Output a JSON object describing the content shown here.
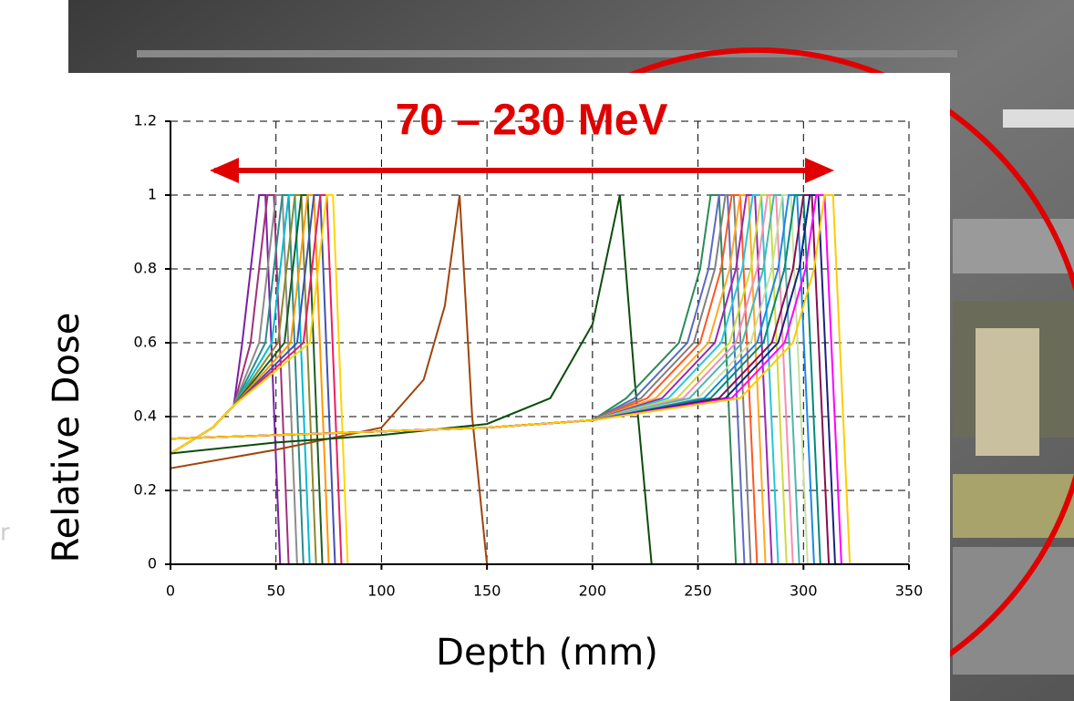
{
  "chart_data": {
    "type": "line",
    "annotation": "70 – 230 MeV",
    "background_fragment": "r",
    "xlabel": "Depth (mm)",
    "ylabel": "Relative Dose",
    "xlim": [
      0,
      350
    ],
    "ylim": [
      0,
      1.2
    ],
    "xticks": [
      0,
      50,
      100,
      150,
      200,
      250,
      300,
      350
    ],
    "yticks": [
      0,
      0.2,
      0.4,
      0.6,
      0.8,
      1,
      1.2
    ],
    "grid": true,
    "series": [
      {
        "color": "#7b1fa2",
        "x": [
          0,
          20,
          30,
          34,
          39,
          42,
          45,
          52
        ],
        "values": [
          0.3,
          0.37,
          0.43,
          0.6,
          0.85,
          1,
          1,
          0
        ]
      },
      {
        "color": "#a0307a",
        "x": [
          0,
          20,
          30,
          38,
          43,
          46,
          49,
          56
        ],
        "values": [
          0.3,
          0.37,
          0.43,
          0.6,
          0.85,
          1,
          1,
          0
        ]
      },
      {
        "color": "#8c8c8c",
        "x": [
          0,
          20,
          30,
          42,
          47,
          50,
          53,
          60
        ],
        "values": [
          0.3,
          0.37,
          0.43,
          0.6,
          0.85,
          1,
          1,
          0
        ]
      },
      {
        "color": "#2e8b8b",
        "x": [
          0,
          20,
          30,
          45,
          50,
          53,
          56,
          63
        ],
        "values": [
          0.3,
          0.37,
          0.43,
          0.6,
          0.85,
          1,
          1,
          0
        ]
      },
      {
        "color": "#00bcd4",
        "x": [
          0,
          20,
          30,
          48,
          53,
          56,
          59,
          66
        ],
        "values": [
          0.3,
          0.37,
          0.43,
          0.6,
          0.85,
          1,
          1,
          0
        ]
      },
      {
        "color": "#8a8a2a",
        "x": [
          0,
          20,
          30,
          51,
          56,
          59,
          62,
          69
        ],
        "values": [
          0.3,
          0.37,
          0.43,
          0.6,
          0.85,
          1,
          1,
          0
        ]
      },
      {
        "color": "#1b5e20",
        "x": [
          0,
          20,
          30,
          54,
          59,
          62,
          65,
          72
        ],
        "values": [
          0.3,
          0.37,
          0.43,
          0.6,
          0.85,
          1,
          1,
          0
        ]
      },
      {
        "color": "#ff9800",
        "x": [
          0,
          20,
          30,
          57,
          62,
          65,
          68,
          75
        ],
        "values": [
          0.3,
          0.37,
          0.43,
          0.6,
          0.85,
          1,
          1,
          0
        ]
      },
      {
        "color": "#3f51b5",
        "x": [
          0,
          20,
          30,
          60,
          65,
          68,
          71,
          78
        ],
        "values": [
          0.3,
          0.37,
          0.43,
          0.6,
          0.85,
          1,
          1,
          0
        ]
      },
      {
        "color": "#e91e63",
        "x": [
          0,
          20,
          30,
          63,
          68,
          71,
          74,
          81
        ],
        "values": [
          0.3,
          0.37,
          0.43,
          0.6,
          0.85,
          1,
          1,
          0
        ]
      },
      {
        "color": "#ffd600",
        "x": [
          0,
          20,
          30,
          66,
          71,
          74,
          77,
          84
        ],
        "values": [
          0.3,
          0.37,
          0.43,
          0.6,
          0.85,
          1,
          1,
          0
        ]
      },
      {
        "color": "#a0440a",
        "x": [
          0,
          50,
          100,
          120,
          130,
          137,
          143,
          150
        ],
        "values": [
          0.26,
          0.31,
          0.37,
          0.5,
          0.7,
          1,
          0.4,
          0
        ]
      },
      {
        "color": "#0b4d0b",
        "x": [
          0,
          50,
          100,
          150,
          180,
          200,
          213,
          220,
          228
        ],
        "values": [
          0.3,
          0.33,
          0.35,
          0.38,
          0.45,
          0.65,
          1,
          0.5,
          0
        ]
      },
      {
        "color": "#2a8a5a",
        "x": [
          0,
          100,
          150,
          200,
          216,
          241,
          251,
          256,
          260,
          268
        ],
        "values": [
          0.34,
          0.36,
          0.37,
          0.39,
          0.45,
          0.6,
          0.8,
          1,
          1,
          0
        ]
      },
      {
        "color": "#5c6bc0",
        "x": [
          0,
          100,
          150,
          200,
          220,
          245,
          255,
          260,
          264,
          272
        ],
        "values": [
          0.34,
          0.36,
          0.37,
          0.39,
          0.45,
          0.6,
          0.8,
          1,
          1,
          0
        ]
      },
      {
        "color": "#808080",
        "x": [
          0,
          100,
          150,
          200,
          223,
          248,
          258,
          263,
          267,
          275
        ],
        "values": [
          0.34,
          0.36,
          0.37,
          0.39,
          0.45,
          0.6,
          0.8,
          1,
          1,
          0
        ]
      },
      {
        "color": "#ff5722",
        "x": [
          0,
          100,
          150,
          200,
          226,
          251,
          261,
          266,
          270,
          278
        ],
        "values": [
          0.34,
          0.36,
          0.37,
          0.39,
          0.45,
          0.6,
          0.8,
          1,
          1,
          0
        ]
      },
      {
        "color": "#ffa726",
        "x": [
          0,
          100,
          150,
          200,
          230,
          255,
          265,
          270,
          274,
          282
        ],
        "values": [
          0.34,
          0.36,
          0.37,
          0.39,
          0.45,
          0.6,
          0.8,
          1,
          1,
          0
        ]
      },
      {
        "color": "#9c27b0",
        "x": [
          0,
          100,
          150,
          200,
          233,
          258,
          268,
          273,
          277,
          285
        ],
        "values": [
          0.34,
          0.36,
          0.37,
          0.39,
          0.45,
          0.6,
          0.8,
          1,
          1,
          0
        ]
      },
      {
        "color": "#26c6da",
        "x": [
          0,
          100,
          150,
          200,
          236,
          261,
          271,
          276,
          280,
          288
        ],
        "values": [
          0.34,
          0.36,
          0.37,
          0.39,
          0.45,
          0.6,
          0.8,
          1,
          1,
          0
        ]
      },
      {
        "color": "#cddc39",
        "x": [
          0,
          100,
          150,
          200,
          240,
          265,
          275,
          280,
          284,
          292
        ],
        "values": [
          0.34,
          0.36,
          0.37,
          0.39,
          0.45,
          0.6,
          0.8,
          1,
          1,
          0
        ]
      },
      {
        "color": "#f48fb1",
        "x": [
          0,
          100,
          150,
          200,
          243,
          268,
          278,
          283,
          287,
          295
        ],
        "values": [
          0.34,
          0.36,
          0.37,
          0.39,
          0.45,
          0.6,
          0.8,
          1,
          1,
          0
        ]
      },
      {
        "color": "#4db6ac",
        "x": [
          0,
          100,
          150,
          200,
          246,
          271,
          281,
          286,
          290,
          298
        ],
        "values": [
          0.34,
          0.36,
          0.37,
          0.39,
          0.45,
          0.6,
          0.8,
          1,
          1,
          0
        ]
      },
      {
        "color": "#c5e1a5",
        "x": [
          0,
          100,
          150,
          200,
          250,
          275,
          285,
          290,
          294,
          302
        ],
        "values": [
          0.34,
          0.36,
          0.37,
          0.39,
          0.45,
          0.6,
          0.8,
          1,
          1,
          0
        ]
      },
      {
        "color": "#1e88e5",
        "x": [
          0,
          100,
          150,
          200,
          253,
          278,
          288,
          293,
          297,
          305
        ],
        "values": [
          0.34,
          0.36,
          0.37,
          0.39,
          0.45,
          0.6,
          0.8,
          1,
          1,
          0
        ]
      },
      {
        "color": "#00897b",
        "x": [
          0,
          100,
          150,
          200,
          256,
          281,
          291,
          296,
          300,
          308
        ],
        "values": [
          0.34,
          0.36,
          0.37,
          0.39,
          0.45,
          0.6,
          0.8,
          1,
          1,
          0
        ]
      },
      {
        "color": "#880e4f",
        "x": [
          0,
          100,
          150,
          200,
          260,
          285,
          295,
          300,
          304,
          312
        ],
        "values": [
          0.34,
          0.36,
          0.37,
          0.39,
          0.45,
          0.6,
          0.8,
          1,
          1,
          0
        ]
      },
      {
        "color": "#1a237e",
        "x": [
          0,
          100,
          150,
          200,
          263,
          288,
          298,
          303,
          307,
          315
        ],
        "values": [
          0.34,
          0.36,
          0.37,
          0.39,
          0.45,
          0.6,
          0.8,
          1,
          1,
          0
        ]
      },
      {
        "color": "#ff00ff",
        "x": [
          0,
          100,
          150,
          200,
          266,
          291,
          301,
          306,
          310,
          318
        ],
        "values": [
          0.34,
          0.36,
          0.37,
          0.39,
          0.45,
          0.6,
          0.8,
          1,
          1,
          0
        ]
      },
      {
        "color": "#ffcc00",
        "x": [
          0,
          100,
          150,
          200,
          270,
          295,
          305,
          310,
          314,
          322
        ],
        "values": [
          0.34,
          0.36,
          0.37,
          0.39,
          0.45,
          0.6,
          0.8,
          1,
          1,
          0
        ]
      }
    ]
  }
}
